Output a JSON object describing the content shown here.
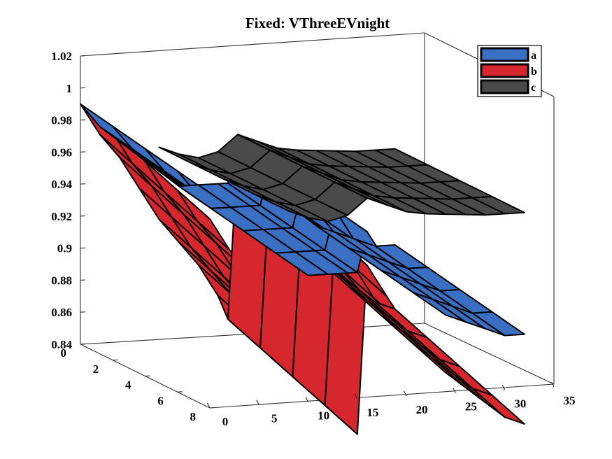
{
  "chart_data": {
    "type": "surface",
    "title": "Fixed: VThreeEVnight",
    "x_ticks": [
      "0",
      "5",
      "10",
      "15",
      "20",
      "25",
      "30",
      "35"
    ],
    "y_ticks": [
      "0",
      "2",
      "4",
      "6",
      "8"
    ],
    "z_ticks": [
      "0.84",
      "0.86",
      "0.88",
      "0.9",
      "0.92",
      "0.94",
      "0.96",
      "0.98",
      "1",
      "1.02"
    ],
    "xlim": [
      0,
      35
    ],
    "ylim": [
      0,
      8
    ],
    "zlim": [
      0.84,
      1.02
    ],
    "grid": false,
    "legend_position": "top-right",
    "colors": {
      "a": "#3a6fc4",
      "b": "#d6262e",
      "c": "#4a4a4a"
    },
    "series": [
      {
        "name": "a",
        "x": [
          0,
          2,
          4,
          6,
          8,
          10,
          12,
          14,
          15,
          16,
          18,
          20,
          22,
          24,
          26,
          28,
          30,
          32
        ],
        "z": [
          0.99,
          0.975,
          0.965,
          0.955,
          0.945,
          0.935,
          0.935,
          0.935,
          0.935,
          0.96,
          0.94,
          0.925,
          0.915,
          0.905,
          0.9,
          0.895,
          0.89,
          0.89
        ]
      },
      {
        "name": "b",
        "x": [
          0,
          2,
          4,
          6,
          8,
          10,
          12,
          14,
          15,
          16,
          18,
          20,
          22,
          24,
          26,
          28,
          30,
          32
        ],
        "z": [
          0.99,
          0.97,
          0.955,
          0.935,
          0.915,
          0.9,
          0.885,
          0.865,
          0.85,
          0.955,
          0.935,
          0.915,
          0.9,
          0.885,
          0.875,
          0.865,
          0.855,
          0.85
        ]
      },
      {
        "name": "c",
        "x": [
          8,
          10,
          12,
          14,
          16,
          18,
          20,
          22,
          24,
          26,
          28,
          30,
          32
        ],
        "z": [
          0.96,
          0.955,
          0.952,
          0.955,
          0.965,
          0.96,
          0.955,
          0.953,
          0.952,
          0.951,
          0.95,
          0.95,
          0.95
        ]
      }
    ]
  }
}
